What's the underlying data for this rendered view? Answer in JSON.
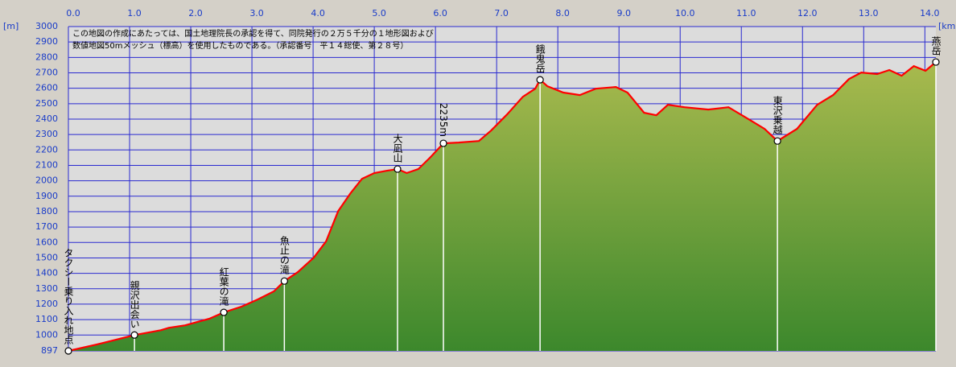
{
  "chart_data": {
    "type": "area",
    "x_label": "[km]",
    "y_label": "[m]",
    "note": [
      "この地図の作成にあたっては、国土地理院長の承認を得て、同院発行の２万５千分の１地形図および",
      "数値地図50mメッシュ（標高）を使用したものである。（承認番号　平１４総使、第２８号）"
    ],
    "color": "#ff0000",
    "fill_gradient": [
      "#a9ba4e",
      "#3c882c"
    ],
    "plot_background": "#dcdcdc",
    "grid_color": "#2a2ad0",
    "grid": true,
    "x": [
      0,
      0.46,
      1.08,
      1.51,
      1.64,
      1.91,
      2.1,
      2.3,
      2.54,
      2.83,
      3.09,
      3.36,
      3.53,
      3.75,
      4.01,
      4.21,
      4.41,
      4.61,
      4.8,
      5.0,
      5.2,
      5.38,
      5.53,
      5.72,
      5.92,
      6.13,
      6.38,
      6.71,
      6.91,
      7.17,
      7.43,
      7.63,
      7.71,
      7.83,
      8.09,
      8.36,
      8.62,
      8.95,
      9.14,
      9.41,
      9.61,
      9.8,
      10.07,
      10.46,
      10.79,
      11.12,
      11.38,
      11.59,
      11.91,
      12.24,
      12.5,
      12.76,
      12.96,
      13.22,
      13.42,
      13.62,
      13.82,
      14.01,
      14.18
    ],
    "values": [
      897,
      938,
      1000,
      1031,
      1047,
      1063,
      1084,
      1105,
      1147,
      1184,
      1230,
      1283,
      1350,
      1408,
      1502,
      1606,
      1804,
      1919,
      2013,
      2050,
      2065,
      2076,
      2050,
      2076,
      2154,
      2243,
      2248,
      2258,
      2326,
      2430,
      2545,
      2597,
      2655,
      2613,
      2572,
      2556,
      2597,
      2608,
      2572,
      2441,
      2425,
      2493,
      2477,
      2462,
      2477,
      2399,
      2337,
      2258,
      2337,
      2493,
      2556,
      2660,
      2702,
      2692,
      2718,
      2681,
      2744,
      2713,
      2770
    ],
    "markers": [
      {
        "label": "タクシー乗り入れ地点",
        "x": 0,
        "value": 897
      },
      {
        "label": "親沢出会い",
        "x": 1.08,
        "value": 1000
      },
      {
        "label": "紅葉の滝",
        "x": 2.54,
        "value": 1147
      },
      {
        "label": "魚止の滝",
        "x": 3.53,
        "value": 1350
      },
      {
        "label": "大凪山",
        "x": 5.38,
        "value": 2076
      },
      {
        "label": "2235m",
        "x": 6.13,
        "value": 2243
      },
      {
        "label": "餓鬼岳",
        "x": 7.71,
        "value": 2655
      },
      {
        "label": "東沢乗越",
        "x": 11.59,
        "value": 2258
      },
      {
        "label": "燕岳",
        "x": 14.18,
        "value": 2770
      }
    ],
    "xlim": [
      0,
      14.18
    ],
    "ylim": [
      897,
      3000
    ],
    "xticks": [
      {
        "value": 0,
        "label": "0.0"
      },
      {
        "value": 1,
        "label": "1.0"
      },
      {
        "value": 2,
        "label": "2.0"
      },
      {
        "value": 3,
        "label": "3.0"
      },
      {
        "value": 4,
        "label": "4.0"
      },
      {
        "value": 5,
        "label": "5.0"
      },
      {
        "value": 6,
        "label": "6.0"
      },
      {
        "value": 7,
        "label": "7.0"
      },
      {
        "value": 8,
        "label": "8.0"
      },
      {
        "value": 9,
        "label": "9.0"
      },
      {
        "value": 10,
        "label": "10.0"
      },
      {
        "value": 11,
        "label": "11.0"
      },
      {
        "value": 12,
        "label": "12.0"
      },
      {
        "value": 13,
        "label": "13.0"
      },
      {
        "value": 14,
        "label": "14.0"
      }
    ],
    "yticks": [
      897,
      1000,
      1100,
      1200,
      1300,
      1400,
      1500,
      1600,
      1700,
      1800,
      1900,
      2000,
      2100,
      2200,
      2300,
      2400,
      2500,
      2600,
      2700,
      2800,
      2900,
      3000
    ]
  }
}
